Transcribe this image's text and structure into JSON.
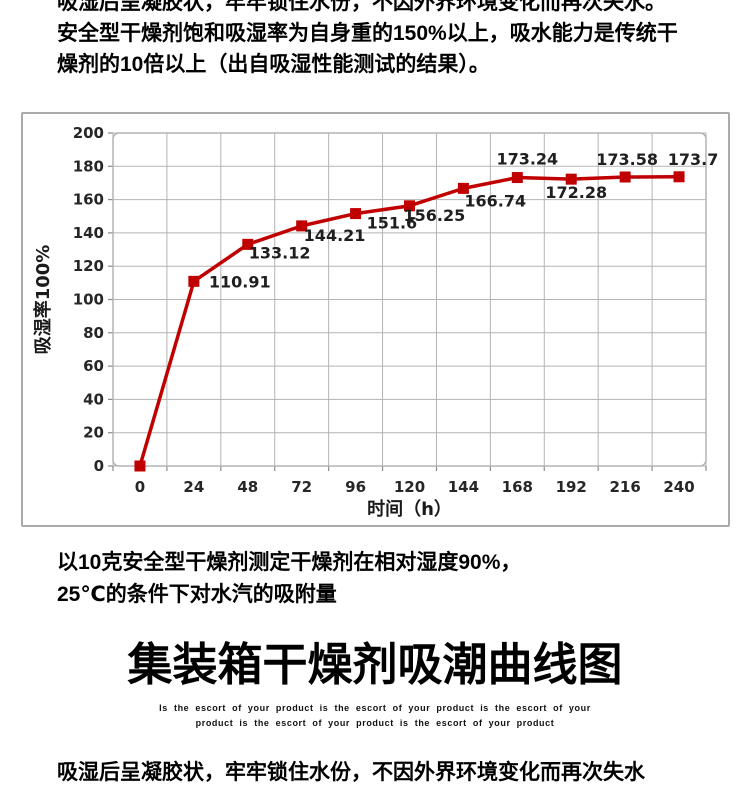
{
  "intro": {
    "line1": "吸湿后呈凝胶状，牢牢锁住水份，不因外界环境变化而再次失水。",
    "line2": "安全型干燥剂饱和吸湿率为自身重的150%以上，吸水能力是传统干",
    "line3": "燥剂的10倍以上（出自吸湿性能测试的结果）。"
  },
  "chart_data": {
    "type": "line",
    "x_categories": [
      0,
      24,
      48,
      72,
      96,
      120,
      144,
      168,
      192,
      216,
      240
    ],
    "values": [
      0,
      110.91,
      133.12,
      144.21,
      151.6,
      156.25,
      166.74,
      173.24,
      172.28,
      173.58,
      173.7
    ],
    "data_labels": [
      "",
      "110.91",
      "133.12",
      "144.21",
      "151.6",
      "156.25",
      "166.74",
      "173.24",
      "172.28",
      "173.58",
      "173.7"
    ],
    "title": "",
    "xlabel": "时间（h）",
    "ylabel": "吸湿率100%",
    "ylim": [
      0,
      200
    ],
    "ytick_step": 20,
    "grid": true,
    "legend": "none",
    "marker": "square",
    "line_color": "#c00000",
    "grid_color": "#b3b3b3",
    "tick_color": "#8c8c8c",
    "axis_text_color": "#262626"
  },
  "chart_caption": {
    "line1": "以10克安全型干燥剂测定干燥剂在相对湿度90%，",
    "line2": "25℃的条件下对水汽的吸附量"
  },
  "main_title": "集装箱干燥剂吸潮曲线图",
  "subtitle_en": {
    "line1": "Is the escort of your product is the escort of your product is the escort of your",
    "line2": "product is the escort of your product is the escort of your product"
  },
  "footer": {
    "text": "吸湿后呈凝胶状，牢牢锁住水份，不因外界环境变化而再次失水"
  }
}
